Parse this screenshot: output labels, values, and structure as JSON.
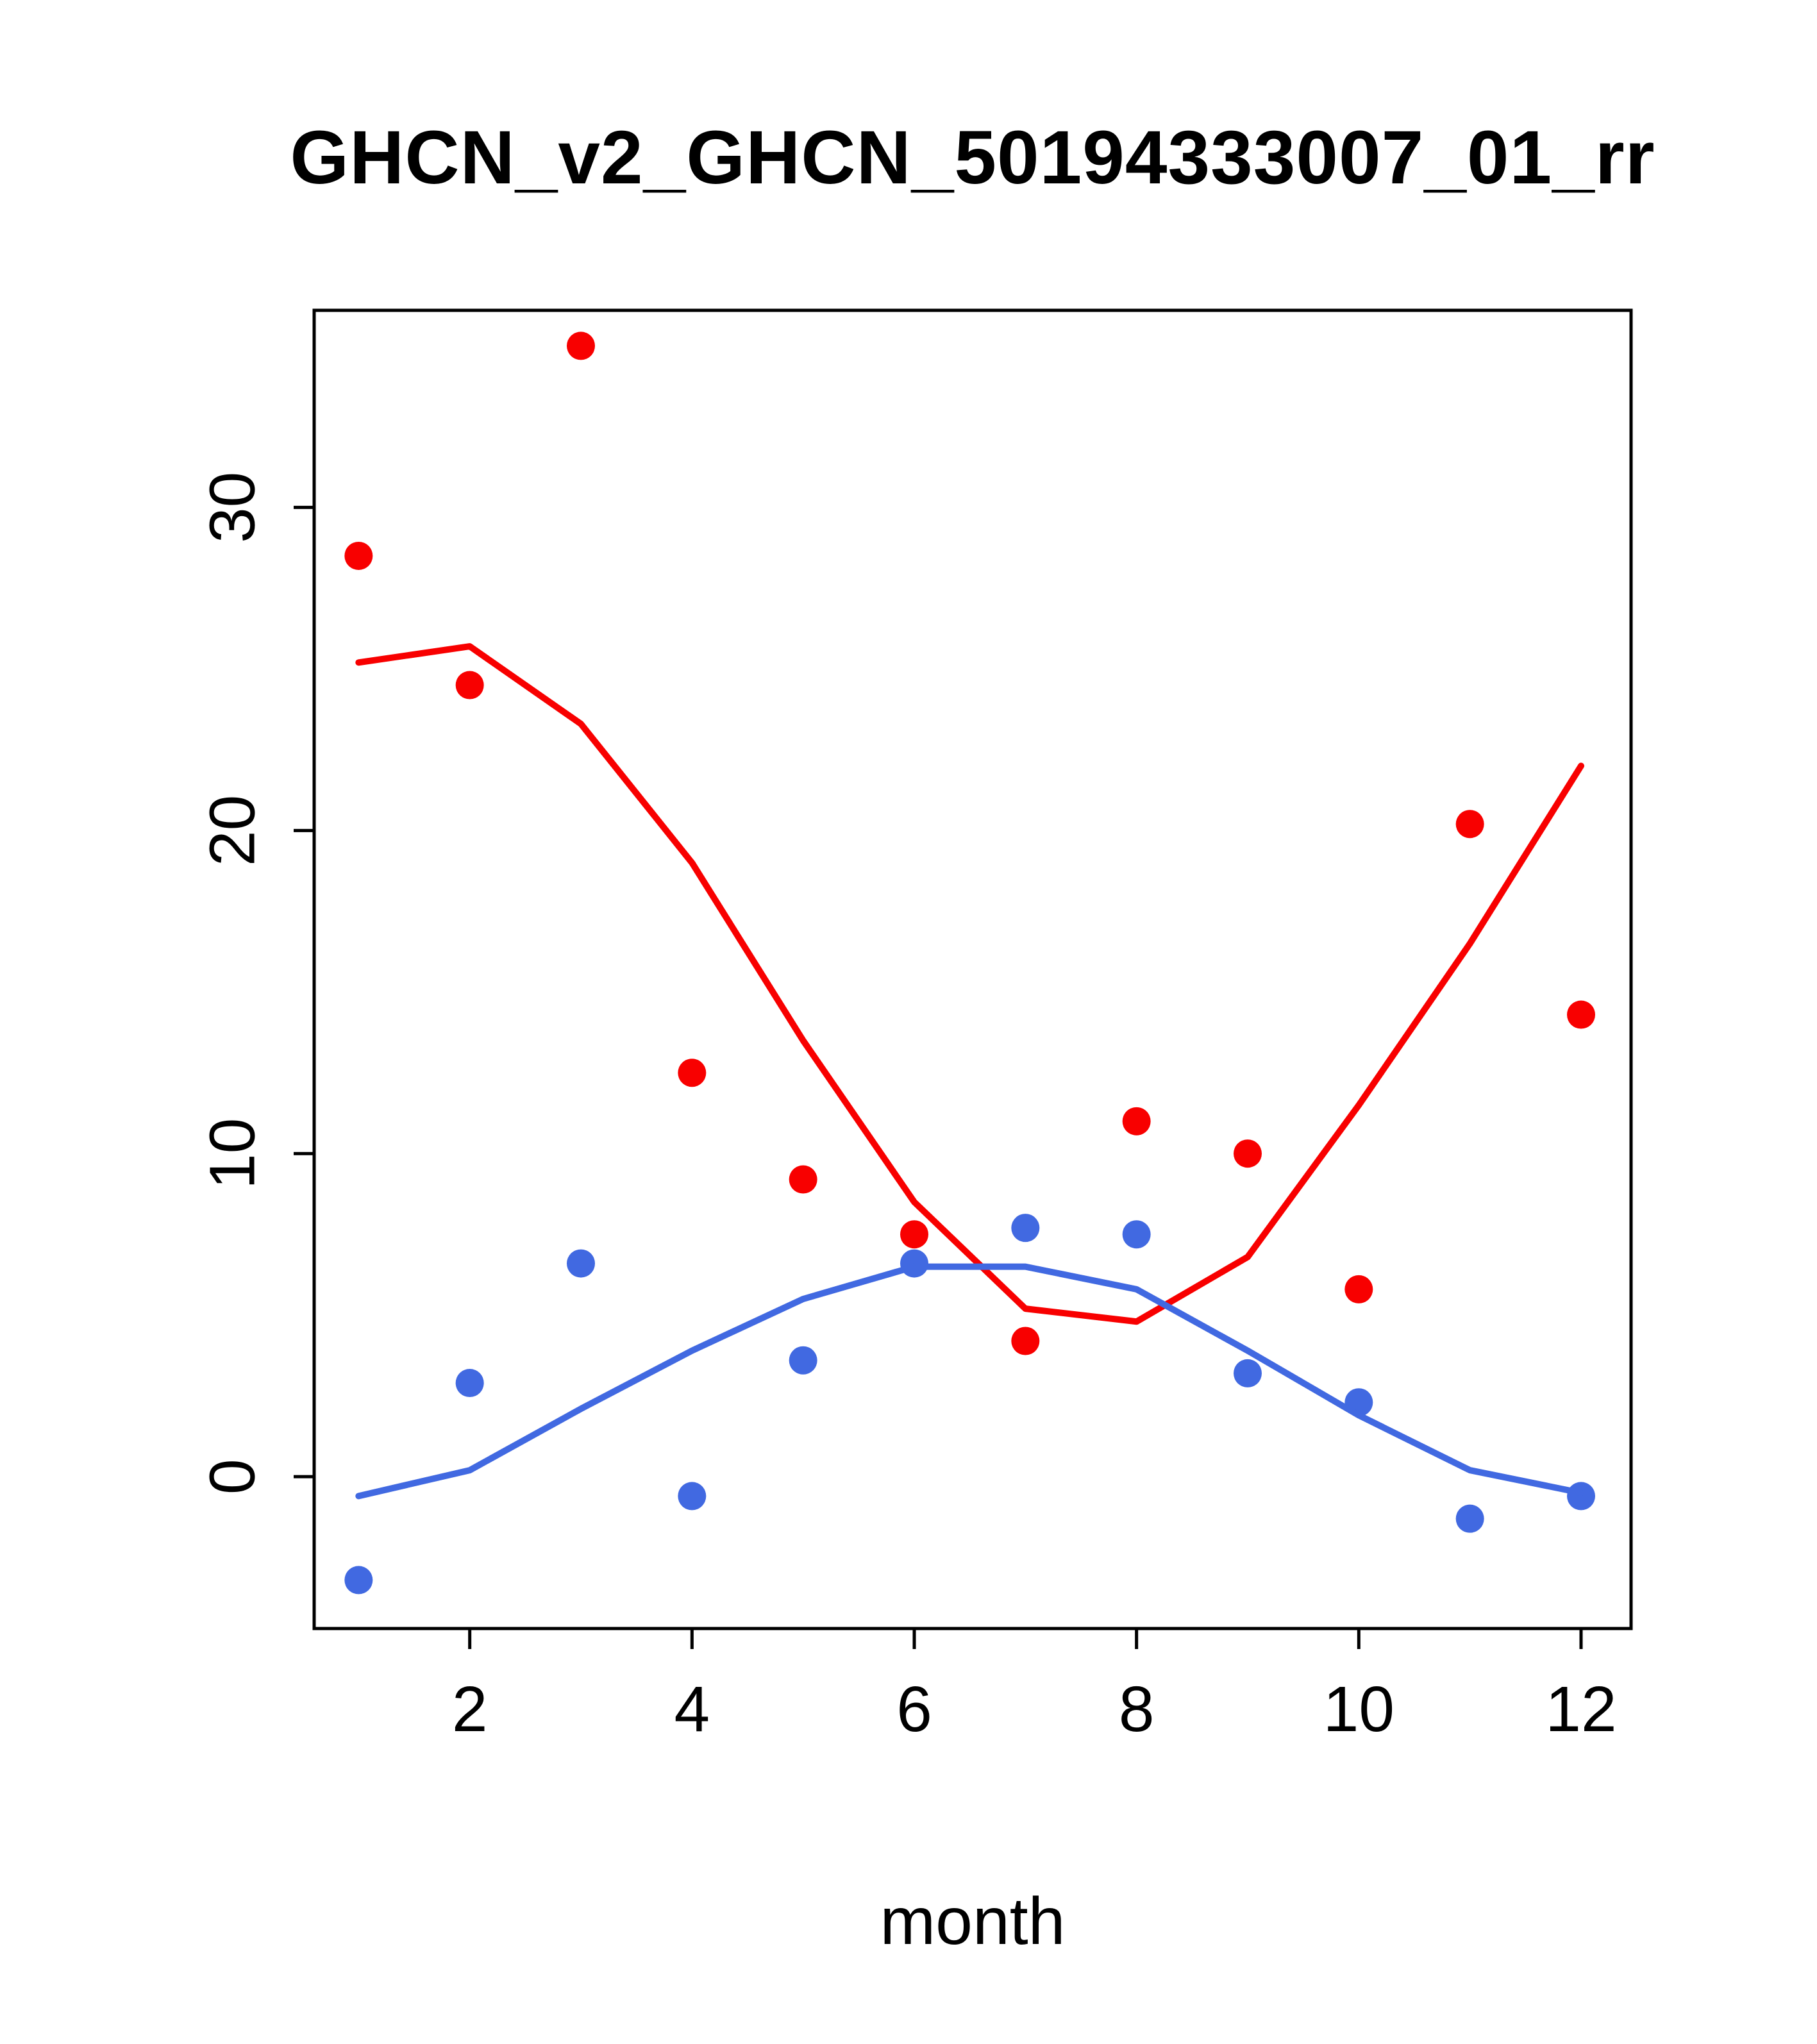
{
  "chart_data": {
    "type": "line",
    "title": "GHCN_v2_GHCN_50194333007_01_rr",
    "xlabel": "month",
    "ylabel": "",
    "x": [
      1,
      2,
      3,
      4,
      5,
      6,
      7,
      8,
      9,
      10,
      11,
      12
    ],
    "xlim": [
      0.6,
      12.45
    ],
    "ylim": [
      -4.7,
      36.1
    ],
    "x_ticks": [
      2,
      4,
      6,
      8,
      10,
      12
    ],
    "y_ticks": [
      0,
      10,
      20,
      30
    ],
    "grid": false,
    "legend": "none",
    "colors": {
      "red": "#f80000",
      "blue": "#4169e1",
      "axis": "#000000",
      "background": "#ffffff"
    },
    "series": [
      {
        "name": "red-points",
        "kind": "scatter",
        "color": "#f80000",
        "values": [
          28.5,
          24.5,
          35.0,
          12.5,
          9.2,
          7.5,
          4.2,
          11.0,
          10.0,
          5.8,
          20.2,
          14.3
        ]
      },
      {
        "name": "blue-points",
        "kind": "scatter",
        "color": "#4169e1",
        "values": [
          -3.2,
          2.9,
          6.6,
          -0.6,
          3.6,
          6.6,
          7.7,
          7.5,
          3.2,
          2.3,
          -1.3,
          -0.6
        ]
      },
      {
        "name": "red-smooth-line",
        "kind": "line",
        "color": "#f80000",
        "values": [
          25.2,
          25.7,
          23.3,
          19.0,
          13.5,
          8.5,
          5.2,
          4.8,
          6.8,
          11.5,
          16.5,
          22.0
        ]
      },
      {
        "name": "blue-smooth-line",
        "kind": "line",
        "color": "#4169e1",
        "values": [
          -0.6,
          0.2,
          2.1,
          3.9,
          5.5,
          6.5,
          6.5,
          5.8,
          3.9,
          1.9,
          0.2,
          -0.5
        ]
      }
    ]
  }
}
